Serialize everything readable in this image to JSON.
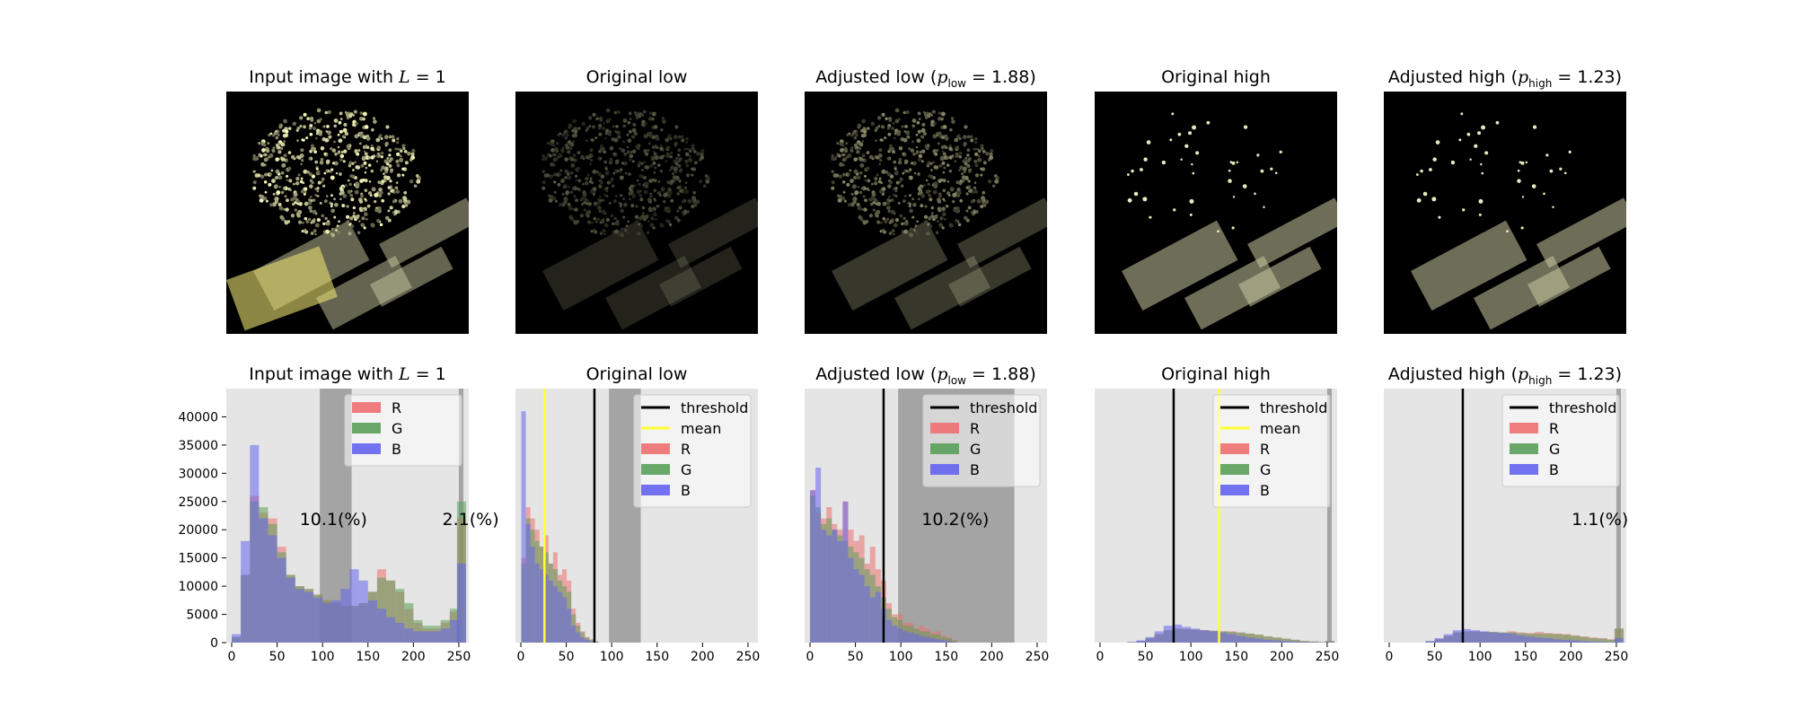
{
  "image_titles": [
    {
      "pre": "Input image with ",
      "math": "L",
      "sub": "",
      "post": " = 1",
      "close": ""
    },
    {
      "pre": "Original low",
      "math": "",
      "sub": "",
      "post": "",
      "close": ""
    },
    {
      "pre": "Adjusted low (",
      "math": "p",
      "sub": "low",
      "post": " = 1.88",
      "close": ")"
    },
    {
      "pre": "Original high",
      "math": "",
      "sub": "",
      "post": "",
      "close": ""
    },
    {
      "pre": "Adjusted high (",
      "math": "p",
      "sub": "high",
      "post": " = 1.23",
      "close": ")"
    }
  ],
  "image_descriptions": [
    "input",
    "original-low",
    "adjusted-low",
    "original-high",
    "adjusted-high"
  ],
  "colors": {
    "R": "#f07070",
    "G": "#5aa05a",
    "B": "#6464f0",
    "threshold": "#000000",
    "mean": "#ffff33",
    "axes_bg": "#e5e5e5",
    "band": "#999999"
  },
  "chart_data": [
    {
      "type": "bar",
      "title": "Input image with L = 1",
      "xlim": [
        0,
        255
      ],
      "ylim": [
        0,
        45000
      ],
      "xticks": [
        "0",
        "50",
        "100",
        "150",
        "200",
        "250"
      ],
      "yticks": [
        "0",
        "5000",
        "10000",
        "15000",
        "20000",
        "25000",
        "30000",
        "35000",
        "40000"
      ],
      "show_yticks": true,
      "legend": [
        "R",
        "G",
        "B"
      ],
      "bands": [
        [
          97,
          132
        ],
        [
          250,
          255
        ]
      ],
      "annotations": [
        {
          "text": "10.1(%)",
          "x": 112
        },
        {
          "text": "2.1(%)",
          "x": 263
        }
      ],
      "threshold": null,
      "mean": null,
      "series": [
        {
          "name": "R",
          "x": [
            5,
            15,
            25,
            35,
            45,
            55,
            65,
            75,
            85,
            95,
            105,
            115,
            125,
            135,
            145,
            155,
            165,
            175,
            185,
            195,
            205,
            215,
            225,
            235,
            245,
            253
          ],
          "values": [
            1000,
            12000,
            26000,
            23000,
            22000,
            17000,
            12000,
            10000,
            9500,
            8500,
            7500,
            7000,
            6500,
            6500,
            7000,
            9000,
            13000,
            11000,
            9000,
            6000,
            3500,
            2500,
            2500,
            3500,
            5500,
            22000
          ]
        },
        {
          "name": "G",
          "x": [
            5,
            15,
            25,
            35,
            45,
            55,
            65,
            75,
            85,
            95,
            105,
            115,
            125,
            135,
            145,
            155,
            165,
            175,
            185,
            195,
            205,
            215,
            225,
            235,
            245,
            253
          ],
          "values": [
            1000,
            12000,
            25000,
            24000,
            21000,
            16000,
            12000,
            10000,
            9500,
            8500,
            7500,
            7000,
            6500,
            6500,
            7000,
            9000,
            11500,
            11000,
            9500,
            7000,
            4000,
            3000,
            3000,
            4000,
            6000,
            25000
          ]
        },
        {
          "name": "B",
          "x": [
            5,
            15,
            25,
            35,
            45,
            55,
            65,
            75,
            85,
            95,
            105,
            115,
            125,
            135,
            145,
            155,
            165,
            175,
            185,
            195,
            205,
            215,
            225,
            235,
            245,
            253
          ],
          "values": [
            1500,
            18000,
            35000,
            22000,
            19000,
            15000,
            11500,
            9500,
            9000,
            8000,
            7000,
            7500,
            9500,
            13000,
            11000,
            7500,
            6000,
            4500,
            3500,
            2500,
            2000,
            2000,
            2000,
            2500,
            4000,
            14000
          ]
        }
      ]
    },
    {
      "type": "bar",
      "title": "Original low",
      "xlim": [
        0,
        255
      ],
      "ylim": [
        0,
        45000
      ],
      "xticks": [
        "0",
        "50",
        "100",
        "150",
        "200",
        "250"
      ],
      "yticks": [],
      "show_yticks": false,
      "legend": [
        "threshold",
        "mean",
        "R",
        "G",
        "B"
      ],
      "bands": [
        [
          97,
          132
        ]
      ],
      "annotations": [],
      "threshold": 81,
      "mean": 26,
      "series": [
        {
          "name": "R",
          "x": [
            3,
            8,
            13,
            18,
            23,
            28,
            33,
            38,
            43,
            48,
            53,
            58,
            63,
            68,
            73,
            78,
            83
          ],
          "values": [
            15000,
            24000,
            22000,
            20000,
            17000,
            19000,
            14000,
            16000,
            12000,
            13000,
            11000,
            6000,
            3500,
            2000,
            1000,
            600,
            200
          ]
        },
        {
          "name": "G",
          "x": [
            3,
            8,
            13,
            18,
            23,
            28,
            33,
            38,
            43,
            48,
            53,
            58,
            63,
            68,
            73,
            78,
            83
          ],
          "values": [
            14000,
            22000,
            20000,
            18000,
            17000,
            16000,
            14000,
            13000,
            11000,
            10000,
            9000,
            5000,
            3000,
            1800,
            900,
            500,
            200
          ]
        },
        {
          "name": "B",
          "x": [
            3,
            8,
            13,
            18,
            23,
            28,
            33,
            38,
            43,
            48,
            53,
            58,
            63,
            68,
            73,
            78,
            83
          ],
          "values": [
            41000,
            21000,
            17000,
            14000,
            13000,
            12000,
            11000,
            10000,
            9000,
            8000,
            6000,
            3000,
            1800,
            900,
            500,
            200,
            100
          ]
        }
      ]
    },
    {
      "type": "bar",
      "title": "Adjusted low (p_low = 1.88)",
      "xlim": [
        0,
        255
      ],
      "ylim": [
        0,
        45000
      ],
      "xticks": [
        "0",
        "50",
        "100",
        "150",
        "200",
        "250"
      ],
      "yticks": [],
      "show_yticks": false,
      "legend": [
        "threshold",
        "R",
        "G",
        "B"
      ],
      "bands": [
        [
          97,
          225
        ]
      ],
      "annotations": [
        {
          "text": "10.2(%)",
          "x": 160
        }
      ],
      "threshold": 81,
      "mean": null,
      "series": [
        {
          "name": "R",
          "x": [
            3,
            9,
            15,
            21,
            27,
            33,
            39,
            45,
            51,
            57,
            63,
            69,
            75,
            81,
            87,
            93,
            99,
            105,
            111,
            117,
            123,
            129,
            135,
            141,
            147,
            153,
            159
          ],
          "values": [
            27000,
            23000,
            22000,
            24000,
            21000,
            20000,
            25000,
            20000,
            18000,
            19000,
            14000,
            17000,
            13000,
            11000,
            7000,
            5000,
            5000,
            3500,
            3500,
            2500,
            3000,
            2500,
            1800,
            2000,
            1200,
            1000,
            500
          ]
        },
        {
          "name": "G",
          "x": [
            3,
            9,
            15,
            21,
            27,
            33,
            39,
            45,
            51,
            57,
            63,
            69,
            75,
            81,
            87,
            93,
            99,
            105,
            111,
            117,
            123,
            129,
            135,
            141,
            147,
            153,
            159
          ],
          "values": [
            26000,
            24000,
            21000,
            22000,
            20000,
            19000,
            18000,
            17000,
            16000,
            15000,
            13000,
            12000,
            10000,
            8000,
            6000,
            4500,
            4000,
            3000,
            3000,
            2500,
            2000,
            2000,
            1500,
            1500,
            1000,
            800,
            400
          ]
        },
        {
          "name": "B",
          "x": [
            3,
            9,
            15,
            21,
            27,
            33,
            39,
            45,
            51,
            57,
            63,
            69,
            75,
            81,
            87,
            93,
            99,
            105,
            111,
            117,
            123,
            129,
            135,
            141,
            147,
            153,
            159
          ],
          "values": [
            27000,
            31000,
            20000,
            19000,
            20000,
            18000,
            25000,
            15000,
            13000,
            12000,
            10000,
            8000,
            9000,
            6000,
            4000,
            3000,
            2500,
            2000,
            1800,
            1500,
            1200,
            1000,
            800,
            600,
            400,
            300,
            100
          ]
        }
      ]
    },
    {
      "type": "bar",
      "title": "Original high",
      "xlim": [
        0,
        255
      ],
      "ylim": [
        0,
        45000
      ],
      "xticks": [
        "0",
        "50",
        "100",
        "150",
        "200",
        "250"
      ],
      "yticks": [],
      "show_yticks": false,
      "legend": [
        "threshold",
        "mean",
        "R",
        "G",
        "B"
      ],
      "bands": [
        [
          250,
          255
        ]
      ],
      "annotations": [],
      "threshold": 81,
      "mean": 131,
      "series": [
        {
          "name": "R",
          "x": [
            5,
            15,
            25,
            35,
            45,
            55,
            65,
            75,
            85,
            95,
            105,
            115,
            125,
            135,
            145,
            155,
            165,
            175,
            185,
            195,
            205,
            215,
            225,
            235,
            245,
            253
          ],
          "values": [
            0,
            0,
            0,
            100,
            300,
            800,
            1500,
            2200,
            2500,
            2400,
            2300,
            2200,
            2100,
            2000,
            2000,
            1800,
            1600,
            1400,
            1100,
            900,
            700,
            500,
            300,
            200,
            100,
            300
          ]
        },
        {
          "name": "G",
          "x": [
            5,
            15,
            25,
            35,
            45,
            55,
            65,
            75,
            85,
            95,
            105,
            115,
            125,
            135,
            145,
            155,
            165,
            175,
            185,
            195,
            205,
            215,
            225,
            235,
            245,
            253
          ],
          "values": [
            0,
            0,
            0,
            100,
            300,
            800,
            1500,
            2200,
            2500,
            2400,
            2300,
            2200,
            2100,
            2000,
            1900,
            1800,
            1600,
            1400,
            1100,
            900,
            700,
            500,
            300,
            200,
            100,
            300
          ]
        },
        {
          "name": "B",
          "x": [
            5,
            15,
            25,
            35,
            45,
            55,
            65,
            75,
            85,
            95,
            105,
            115,
            125,
            135,
            145,
            155,
            165,
            175,
            185,
            195,
            205,
            215,
            225,
            235,
            245,
            253
          ],
          "values": [
            0,
            0,
            0,
            100,
            400,
            1000,
            2000,
            3000,
            3200,
            2800,
            2500,
            2200,
            2000,
            1800,
            1500,
            1200,
            900,
            700,
            500,
            400,
            300,
            200,
            150,
            100,
            50,
            100
          ]
        }
      ]
    },
    {
      "type": "bar",
      "title": "Adjusted high (p_high = 1.23)",
      "xlim": [
        0,
        255
      ],
      "ylim": [
        0,
        45000
      ],
      "xticks": [
        "0",
        "50",
        "100",
        "150",
        "200",
        "250"
      ],
      "yticks": [],
      "show_yticks": false,
      "legend": [
        "threshold",
        "R",
        "G",
        "B"
      ],
      "bands": [
        [
          250,
          255
        ]
      ],
      "annotations": [
        {
          "text": "1.1(%)",
          "x": 232
        }
      ],
      "threshold": 81,
      "mean": null,
      "series": [
        {
          "name": "R",
          "x": [
            5,
            15,
            25,
            35,
            45,
            55,
            65,
            75,
            85,
            95,
            105,
            115,
            125,
            135,
            145,
            155,
            165,
            175,
            185,
            195,
            205,
            215,
            225,
            235,
            245,
            253
          ],
          "values": [
            0,
            0,
            0,
            0,
            200,
            600,
            1200,
            1800,
            2000,
            2000,
            1900,
            1900,
            1800,
            2000,
            1800,
            1700,
            1900,
            1700,
            1600,
            1500,
            1300,
            1100,
            900,
            800,
            600,
            2500
          ]
        },
        {
          "name": "G",
          "x": [
            5,
            15,
            25,
            35,
            45,
            55,
            65,
            75,
            85,
            95,
            105,
            115,
            125,
            135,
            145,
            155,
            165,
            175,
            185,
            195,
            205,
            215,
            225,
            235,
            245,
            253
          ],
          "values": [
            0,
            0,
            0,
            0,
            200,
            600,
            1200,
            1800,
            2000,
            2000,
            1900,
            1900,
            1800,
            1800,
            1700,
            1600,
            1600,
            1600,
            1500,
            1400,
            1200,
            1000,
            800,
            700,
            500,
            2500
          ]
        },
        {
          "name": "B",
          "x": [
            5,
            15,
            25,
            35,
            45,
            55,
            65,
            75,
            85,
            95,
            105,
            115,
            125,
            135,
            145,
            155,
            165,
            175,
            185,
            195,
            205,
            215,
            225,
            235,
            245,
            253
          ],
          "values": [
            0,
            0,
            0,
            0,
            300,
            800,
            1500,
            2200,
            2400,
            2200,
            2000,
            1800,
            1700,
            1600,
            1300,
            1100,
            900,
            800,
            600,
            500,
            400,
            300,
            200,
            150,
            100,
            800
          ]
        }
      ]
    }
  ]
}
